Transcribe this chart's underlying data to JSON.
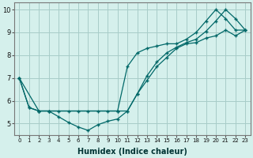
{
  "xlabel": "Humidex (Indice chaleur)",
  "bg_color": "#d5f0ec",
  "grid_color": "#a8ccc8",
  "line_color": "#006868",
  "xlim": [
    -0.5,
    23.5
  ],
  "ylim": [
    4.5,
    10.3
  ],
  "xticks": [
    0,
    1,
    2,
    3,
    4,
    5,
    6,
    7,
    8,
    9,
    10,
    11,
    12,
    13,
    14,
    15,
    16,
    17,
    18,
    19,
    20,
    21,
    22,
    23
  ],
  "yticks": [
    5,
    6,
    7,
    8,
    9,
    10
  ],
  "line1_x": [
    0,
    1,
    2,
    3,
    4,
    5,
    6,
    7,
    8,
    9,
    10,
    11,
    12,
    13,
    14,
    15,
    16,
    17,
    18,
    19,
    20,
    21,
    22,
    23
  ],
  "line1_y": [
    7.0,
    5.7,
    5.55,
    5.55,
    5.55,
    5.55,
    5.55,
    5.55,
    5.55,
    5.55,
    5.55,
    5.55,
    6.3,
    6.9,
    7.5,
    7.9,
    8.3,
    8.5,
    8.55,
    8.75,
    8.85,
    9.1,
    8.85,
    9.1
  ],
  "line2_x": [
    0,
    2,
    3,
    10,
    11,
    12,
    13,
    14,
    15,
    16,
    17,
    18,
    19,
    20,
    21,
    22,
    23
  ],
  "line2_y": [
    7.0,
    5.55,
    5.55,
    5.55,
    7.5,
    8.1,
    8.3,
    8.4,
    8.5,
    8.5,
    8.7,
    9.0,
    9.5,
    10.0,
    9.6,
    9.1,
    9.1
  ],
  "line3_x": [
    0,
    1,
    2,
    3,
    4,
    5,
    6,
    7,
    8,
    9,
    10,
    11,
    12,
    13,
    14,
    15,
    16,
    17,
    18,
    19,
    20,
    21,
    22,
    23
  ],
  "line3_y": [
    7.0,
    5.7,
    5.55,
    5.55,
    5.3,
    5.05,
    4.85,
    4.7,
    4.95,
    5.1,
    5.2,
    5.55,
    6.3,
    7.1,
    7.7,
    8.1,
    8.35,
    8.55,
    8.7,
    9.05,
    9.5,
    10.0,
    9.6,
    9.1
  ]
}
